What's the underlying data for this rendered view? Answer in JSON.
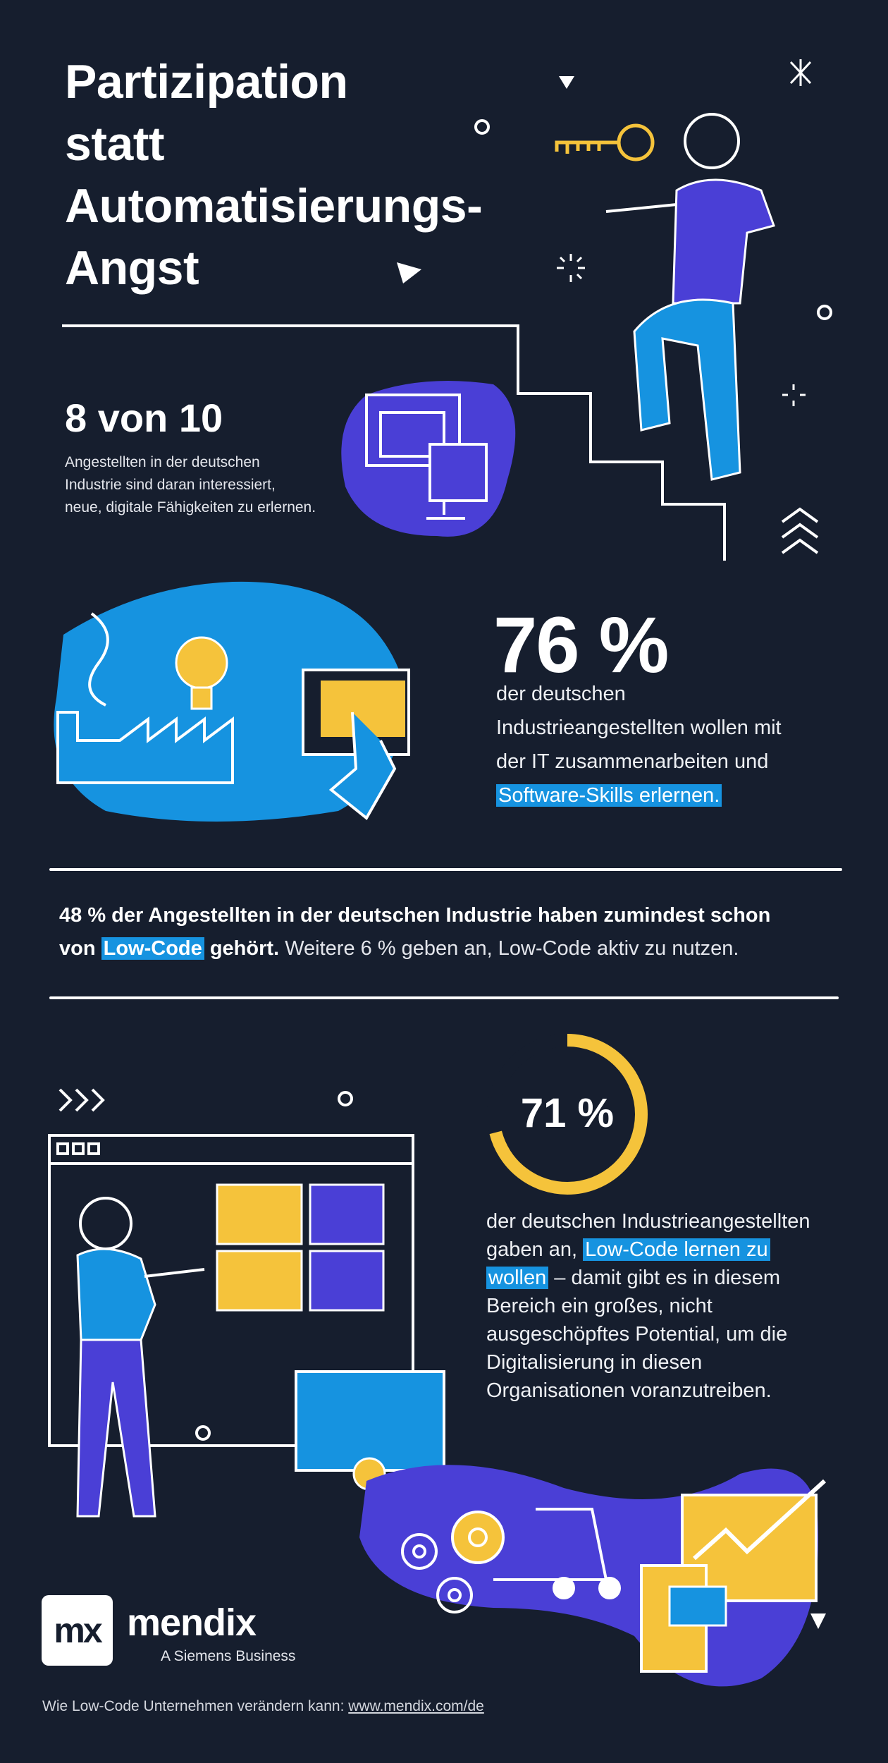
{
  "title_lines": [
    "Partizipation",
    "statt",
    "Automatisierungs-",
    "Angst"
  ],
  "section1": {
    "stat": "8 von 10",
    "description_lines": [
      "Angestellten in der deutschen",
      "Industrie sind daran interessiert,",
      "neue, digitale Fähigkeiten zu erlernen."
    ]
  },
  "section2": {
    "stat": "76 %",
    "description_lines": [
      "der deutschen",
      "Industrieangestellten wollen mit",
      "der IT zusammenarbeiten und"
    ],
    "highlight": "Software-Skills erlernen."
  },
  "section3": {
    "bold_part1": "48 % der Angestellten in der deutschen Industrie haben zumindest schon",
    "bold_part2": "von",
    "highlight": "Low-Code",
    "bold_part3": "gehört.",
    "light_part": "Weitere 6 % geben an, Low-Code aktiv zu nutzen."
  },
  "section4": {
    "stat": "71 %",
    "stat_value_percent": 71,
    "line1": "der deutschen Industrieangestellten",
    "line2_pre": "gaben an,",
    "highlight1": "Low-Code lernen zu",
    "highlight2": "wollen",
    "line3_post": "– damit gibt es in diesem",
    "rest_lines": [
      "Bereich ein großes, nicht",
      "ausgeschöpftes Potential, um die",
      "Digitalisierung in diesen",
      "Organisationen voranzutreiben."
    ]
  },
  "brand": {
    "logo_text": "mx",
    "name": "mendix",
    "tagline": "A Siemens Business"
  },
  "footer": {
    "text": "Wie Low-Code Unternehmen verändern kann:",
    "link": "www.mendix.com/de"
  },
  "colors": {
    "background": "#161e2e",
    "blue": "#1693e0",
    "purple": "#4a3fd6",
    "yellow": "#f5c33b",
    "white": "#ffffff"
  }
}
